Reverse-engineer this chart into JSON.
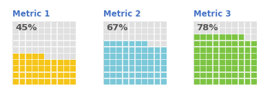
{
  "charts": [
    {
      "title": "Metric 1",
      "value": 45,
      "label": "45%",
      "fill_color": "#F5C518",
      "empty_color": "#E0E0E0",
      "border_color": "#FFFFFF"
    },
    {
      "title": "Metric 2",
      "value": 67,
      "label": "67%",
      "fill_color": "#7BC8D8",
      "empty_color": "#E0E0E0",
      "border_color": "#FFFFFF"
    },
    {
      "title": "Metric 3",
      "value": 78,
      "label": "78%",
      "fill_color": "#7DC443",
      "empty_color": "#E0E0E0",
      "border_color": "#FFFFFF"
    }
  ],
  "rows": 10,
  "cols": 10,
  "title_color": "#4472C4",
  "label_color": "#555555",
  "title_fontsize": 8.5,
  "label_fontsize": 9.5,
  "bg_color": "#FFFFFF",
  "frame_color": "#BBBBBB",
  "frame_lw": 0.8
}
